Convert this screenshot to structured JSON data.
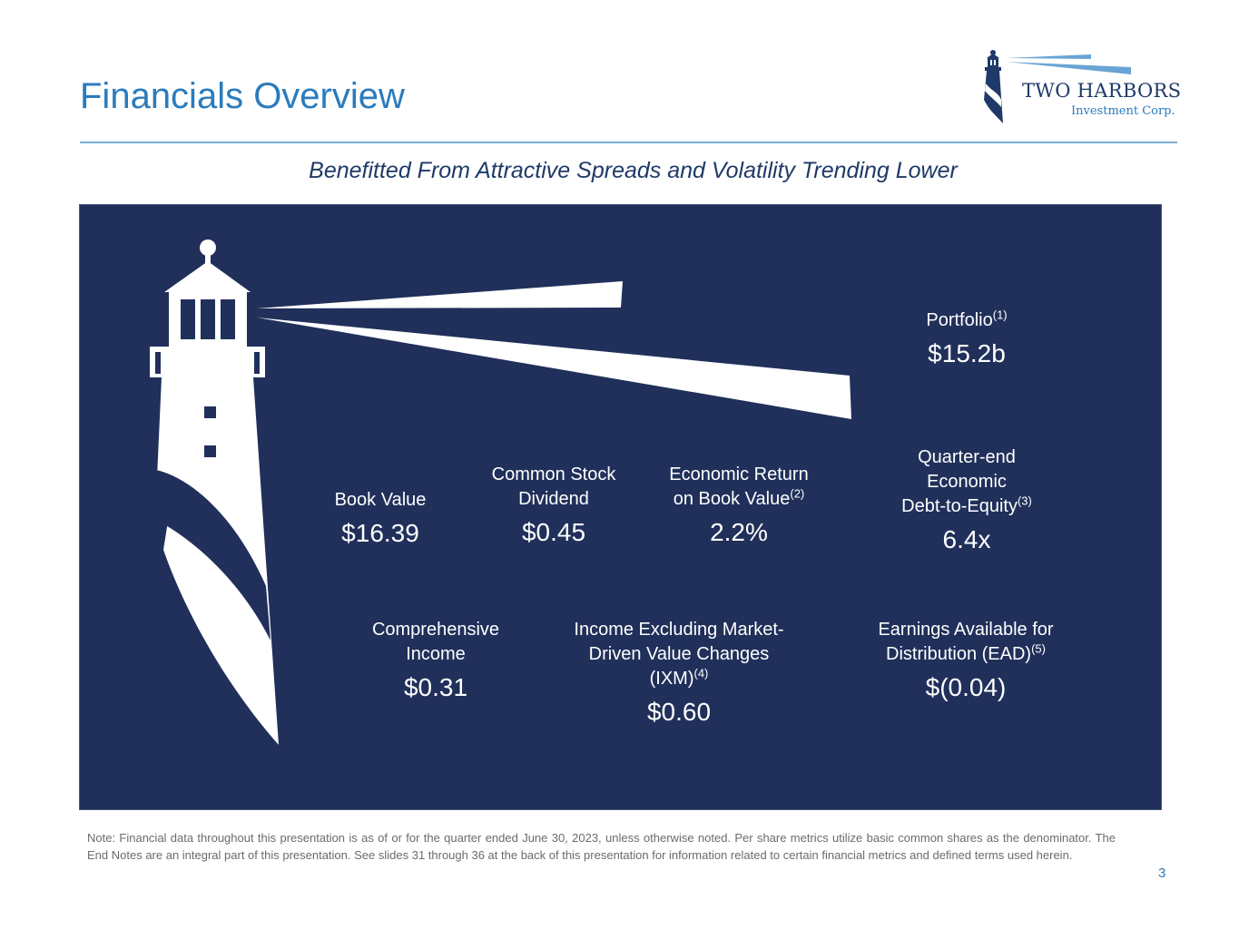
{
  "header": {
    "title": "Financials Overview",
    "logo_name": "TWO HARBORS",
    "logo_subtitle": "Investment Corp."
  },
  "subtitle": "Benefitted From Attractive Spreads and Volatility Trending Lower",
  "metrics": {
    "portfolio": {
      "label": "Portfolio",
      "sup": "(1)",
      "value": "$15.2b"
    },
    "book_value": {
      "label": "Book Value",
      "value": "$16.39"
    },
    "dividend": {
      "label_line1": "Common Stock",
      "label_line2": "Dividend",
      "value": "$0.45"
    },
    "economic_return": {
      "label_line1": "Economic Return",
      "label_line2": "on Book Value",
      "sup": "(2)",
      "value": "2.2%"
    },
    "debt_to_equity": {
      "label_line1": "Quarter-end",
      "label_line2": "Economic",
      "label_line3": "Debt-to-Equity",
      "sup": "(3)",
      "value": "6.4x"
    },
    "comprehensive_income": {
      "label_line1": "Comprehensive",
      "label_line2": "Income",
      "value": "$0.31"
    },
    "ixm": {
      "label_line1": "Income Excluding Market-",
      "label_line2": "Driven Value Changes",
      "label_line3": "(IXM)",
      "sup": "(4)",
      "value": "$0.60"
    },
    "ead": {
      "label_line1": "Earnings Available for",
      "label_line2": "Distribution (EAD)",
      "sup": "(5)",
      "value": "$(0.04)"
    }
  },
  "footer": {
    "note": "Note:  Financial data throughout this presentation is as of or for the quarter ended June 30, 2023, unless otherwise noted. Per share metrics utilize basic common shares as the denominator. The End Notes are an integral part of this presentation. See slides 31 through 36 at the back of this presentation for information related to certain financial metrics and defined terms used herein.",
    "page_number": "3"
  },
  "colors": {
    "title_blue": "#2b7bbd",
    "navy": "#20305a",
    "logo_navy": "#1f3a68"
  },
  "icons": {
    "logo": "lighthouse-logo-icon",
    "panel_art": "lighthouse-illustration-icon"
  }
}
